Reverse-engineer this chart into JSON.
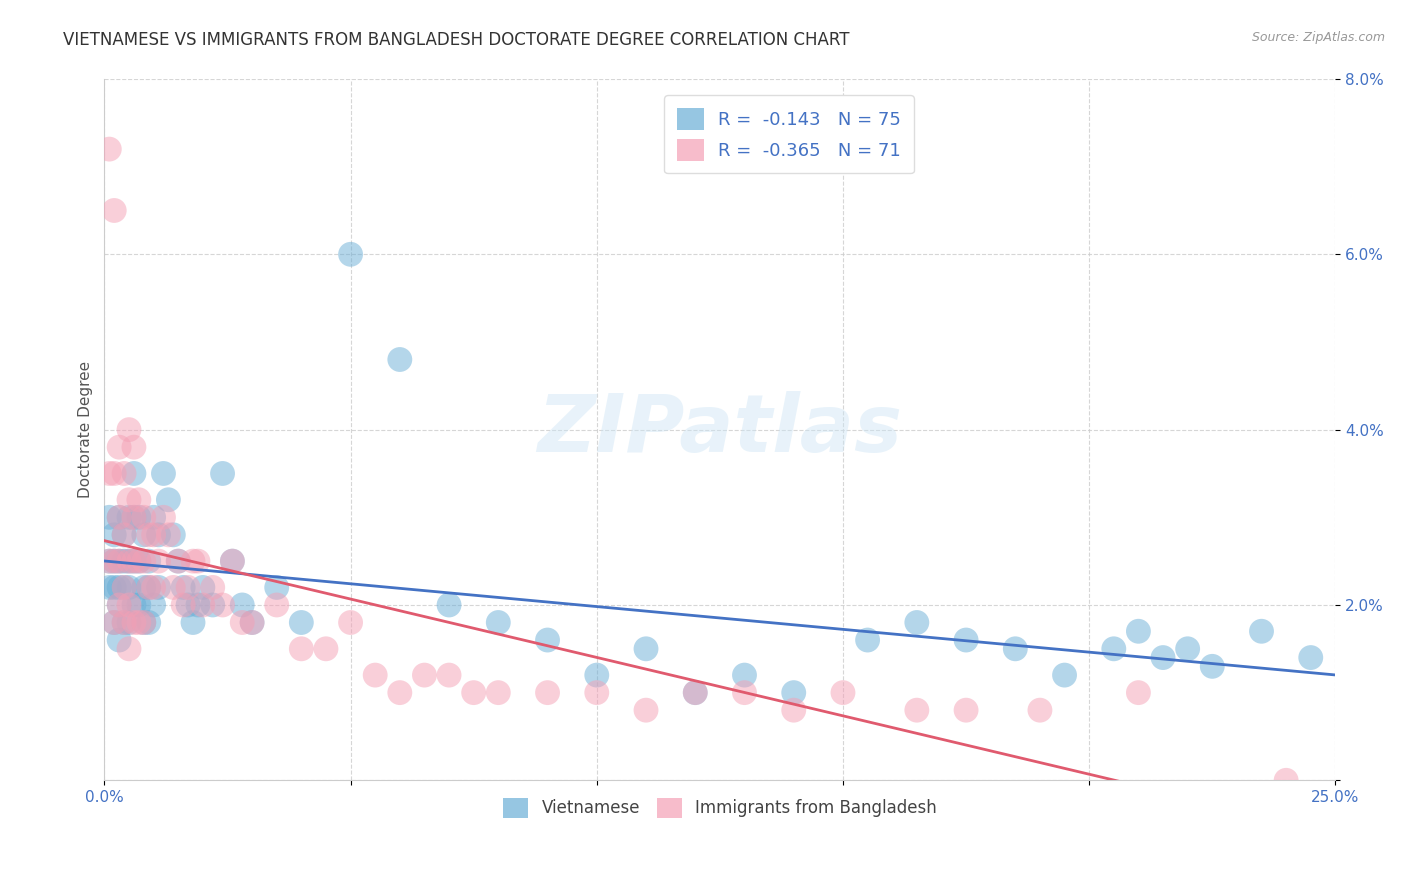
{
  "title": "VIETNAMESE VS IMMIGRANTS FROM BANGLADESH DOCTORATE DEGREE CORRELATION CHART",
  "source": "Source: ZipAtlas.com",
  "ylabel": "Doctorate Degree",
  "xlim": [
    0,
    0.25
  ],
  "ylim": [
    0,
    0.08
  ],
  "xticks": [
    0.0,
    0.25
  ],
  "xticklabels": [
    "0.0%",
    "25.0%"
  ],
  "yticks": [
    0.0,
    0.02,
    0.04,
    0.06,
    0.08
  ],
  "yticklabels": [
    "",
    "2.0%",
    "4.0%",
    "6.0%",
    "8.0%"
  ],
  "legend_entries": [
    {
      "label": "R =  -0.143   N = 75",
      "color": "#aec6e8"
    },
    {
      "label": "R =  -0.365   N = 71",
      "color": "#f4b8c8"
    }
  ],
  "legend_bottom": [
    "Vietnamese",
    "Immigrants from Bangladesh"
  ],
  "color_vietnamese": "#6aaed6",
  "color_bangladesh": "#f4a0b5",
  "trendline_vietnamese_color": "#4472c4",
  "trendline_bangladesh_color": "#e05a6e",
  "background_color": "#ffffff",
  "grid_color": "#cccccc",
  "title_fontsize": 12,
  "axis_label_fontsize": 11,
  "tick_fontsize": 11,
  "tick_color": "#4472c4",
  "vietnamese_x": [
    0.001,
    0.001,
    0.001,
    0.002,
    0.002,
    0.002,
    0.002,
    0.003,
    0.003,
    0.003,
    0.003,
    0.003,
    0.004,
    0.004,
    0.004,
    0.004,
    0.005,
    0.005,
    0.005,
    0.005,
    0.006,
    0.006,
    0.006,
    0.006,
    0.007,
    0.007,
    0.007,
    0.008,
    0.008,
    0.008,
    0.009,
    0.009,
    0.009,
    0.01,
    0.01,
    0.011,
    0.011,
    0.012,
    0.013,
    0.014,
    0.015,
    0.016,
    0.017,
    0.018,
    0.019,
    0.02,
    0.022,
    0.024,
    0.026,
    0.028,
    0.03,
    0.035,
    0.04,
    0.05,
    0.06,
    0.07,
    0.08,
    0.09,
    0.1,
    0.11,
    0.12,
    0.13,
    0.14,
    0.155,
    0.165,
    0.175,
    0.185,
    0.195,
    0.205,
    0.21,
    0.215,
    0.22,
    0.225,
    0.235,
    0.245
  ],
  "vietnamese_y": [
    0.03,
    0.025,
    0.022,
    0.028,
    0.025,
    0.022,
    0.018,
    0.03,
    0.025,
    0.022,
    0.02,
    0.016,
    0.028,
    0.025,
    0.022,
    0.018,
    0.03,
    0.025,
    0.022,
    0.018,
    0.035,
    0.03,
    0.025,
    0.02,
    0.03,
    0.025,
    0.02,
    0.028,
    0.022,
    0.018,
    0.025,
    0.022,
    0.018,
    0.03,
    0.02,
    0.028,
    0.022,
    0.035,
    0.032,
    0.028,
    0.025,
    0.022,
    0.02,
    0.018,
    0.02,
    0.022,
    0.02,
    0.035,
    0.025,
    0.02,
    0.018,
    0.022,
    0.018,
    0.06,
    0.048,
    0.02,
    0.018,
    0.016,
    0.012,
    0.015,
    0.01,
    0.012,
    0.01,
    0.016,
    0.018,
    0.016,
    0.015,
    0.012,
    0.015,
    0.017,
    0.014,
    0.015,
    0.013,
    0.017,
    0.014
  ],
  "bangladesh_x": [
    0.001,
    0.001,
    0.001,
    0.002,
    0.002,
    0.002,
    0.002,
    0.003,
    0.003,
    0.003,
    0.003,
    0.004,
    0.004,
    0.004,
    0.004,
    0.005,
    0.005,
    0.005,
    0.005,
    0.005,
    0.006,
    0.006,
    0.006,
    0.006,
    0.007,
    0.007,
    0.007,
    0.008,
    0.008,
    0.008,
    0.009,
    0.009,
    0.01,
    0.01,
    0.011,
    0.012,
    0.013,
    0.014,
    0.015,
    0.016,
    0.017,
    0.018,
    0.019,
    0.02,
    0.022,
    0.024,
    0.026,
    0.028,
    0.03,
    0.035,
    0.04,
    0.045,
    0.05,
    0.055,
    0.06,
    0.065,
    0.07,
    0.075,
    0.08,
    0.09,
    0.1,
    0.11,
    0.12,
    0.13,
    0.14,
    0.15,
    0.165,
    0.175,
    0.19,
    0.21,
    0.24
  ],
  "bangladesh_y": [
    0.072,
    0.035,
    0.025,
    0.065,
    0.035,
    0.025,
    0.018,
    0.038,
    0.03,
    0.025,
    0.02,
    0.035,
    0.028,
    0.022,
    0.018,
    0.04,
    0.032,
    0.025,
    0.02,
    0.015,
    0.038,
    0.03,
    0.025,
    0.018,
    0.032,
    0.025,
    0.018,
    0.03,
    0.025,
    0.018,
    0.028,
    0.022,
    0.028,
    0.022,
    0.025,
    0.03,
    0.028,
    0.022,
    0.025,
    0.02,
    0.022,
    0.025,
    0.025,
    0.02,
    0.022,
    0.02,
    0.025,
    0.018,
    0.018,
    0.02,
    0.015,
    0.015,
    0.018,
    0.012,
    0.01,
    0.012,
    0.012,
    0.01,
    0.01,
    0.01,
    0.01,
    0.008,
    0.01,
    0.01,
    0.008,
    0.01,
    0.008,
    0.008,
    0.008,
    0.01,
    0.0
  ]
}
